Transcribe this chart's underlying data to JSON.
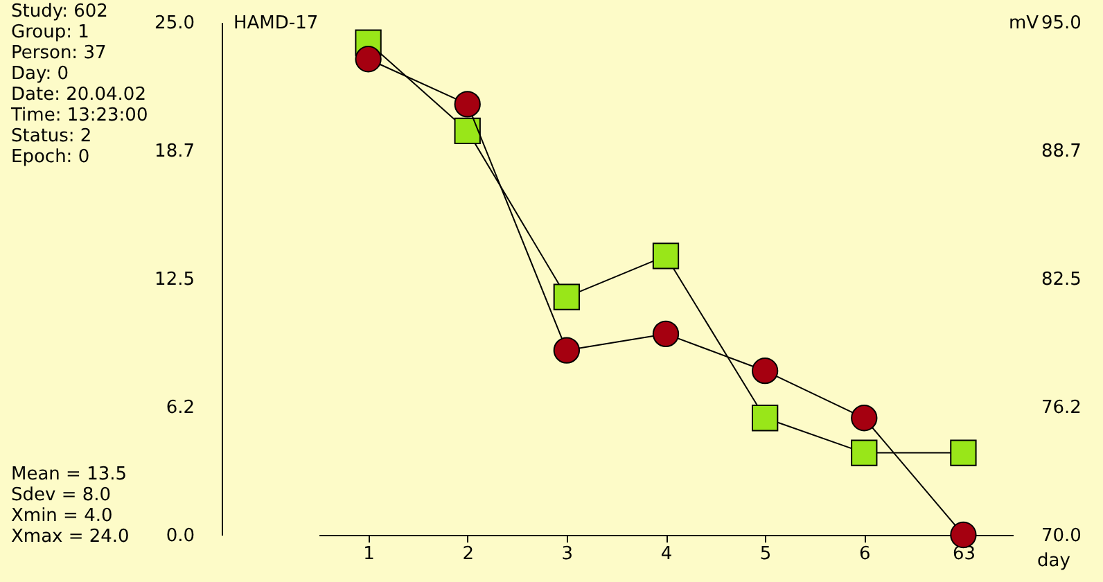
{
  "chart_data": {
    "type": "line",
    "xlabel": "day",
    "ylabel": "HAMD-17",
    "y2label": "mV",
    "categories": [
      "1",
      "2",
      "3",
      "4",
      "5",
      "6",
      "63"
    ],
    "series": [
      {
        "color": "#99e619",
        "marker": "square",
        "values": [
          24.0,
          19.7,
          11.6,
          13.6,
          5.7,
          4.0,
          4.0
        ]
      },
      {
        "color": "#a50010",
        "marker": "circle",
        "axis": "y2",
        "values": [
          93.2,
          91.0,
          79.0,
          79.8,
          78.0,
          75.7,
          70.0
        ]
      }
    ],
    "ylim": [
      0,
      25
    ],
    "yticks": [
      {
        "value": 0,
        "label": "0.0"
      },
      {
        "value": 6.25,
        "label": "6.2"
      },
      12.5,
      {
        "value": 18.75,
        "label": "18.7"
      },
      {
        "value": 25,
        "label": "25.0"
      }
    ],
    "y2lim": [
      70,
      95
    ],
    "y2ticks": [
      {
        "value": 70,
        "label": "70.0"
      },
      {
        "value": 76.25,
        "label": "76.2"
      },
      82.5,
      {
        "value": 88.75,
        "label": "88.7"
      },
      {
        "value": 95,
        "label": "95.0"
      }
    ],
    "annotations": [
      "Study: 602",
      "Group: 1",
      "Person: 37",
      "Day: 0",
      "Date: 20.04.02",
      "Time: 13:23:00",
      "Status: 2",
      "Epoch: 0",
      "Mean = 13.5",
      "Sdev = 8.0",
      "Xmin = 4.0",
      "Xmax = 24.0"
    ],
    "grid": false
  }
}
